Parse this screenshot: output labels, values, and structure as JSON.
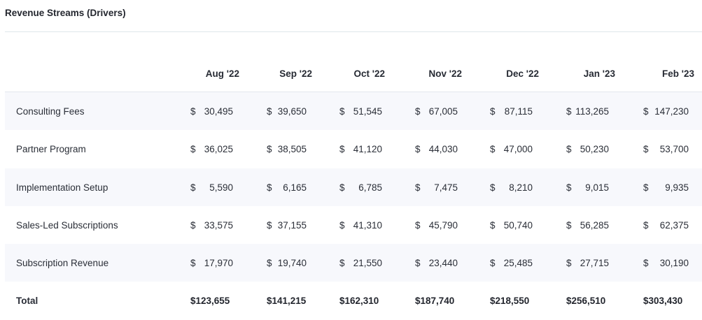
{
  "panel": {
    "title": "Revenue Streams (Drivers)"
  },
  "table": {
    "columns": [
      "Aug '22",
      "Sep '22",
      "Oct '22",
      "Nov '22",
      "Dec '22",
      "Jan '23",
      "Feb '23"
    ],
    "currency_symbol": "$",
    "rows": [
      {
        "label": "Consulting Fees",
        "values": [
          "30,495",
          "39,650",
          "51,545",
          "67,005",
          "87,115",
          "113,265",
          "147,230"
        ]
      },
      {
        "label": "Partner Program",
        "values": [
          "36,025",
          "38,505",
          "41,120",
          "44,030",
          "47,000",
          "50,230",
          "53,700"
        ]
      },
      {
        "label": "Implementation Setup",
        "values": [
          "5,590",
          "6,165",
          "6,785",
          "7,475",
          "8,210",
          "9,015",
          "9,935"
        ]
      },
      {
        "label": "Sales-Led Subscriptions",
        "values": [
          "33,575",
          "37,155",
          "41,310",
          "45,790",
          "50,740",
          "56,285",
          "62,375"
        ]
      },
      {
        "label": "Subscription Revenue",
        "values": [
          "17,970",
          "19,740",
          "21,550",
          "23,440",
          "25,485",
          "27,715",
          "30,190"
        ]
      }
    ],
    "total": {
      "label": "Total",
      "values": [
        "$123,655",
        "$141,215",
        "$162,310",
        "$187,740",
        "$218,550",
        "$256,510",
        "$303,430"
      ]
    }
  }
}
